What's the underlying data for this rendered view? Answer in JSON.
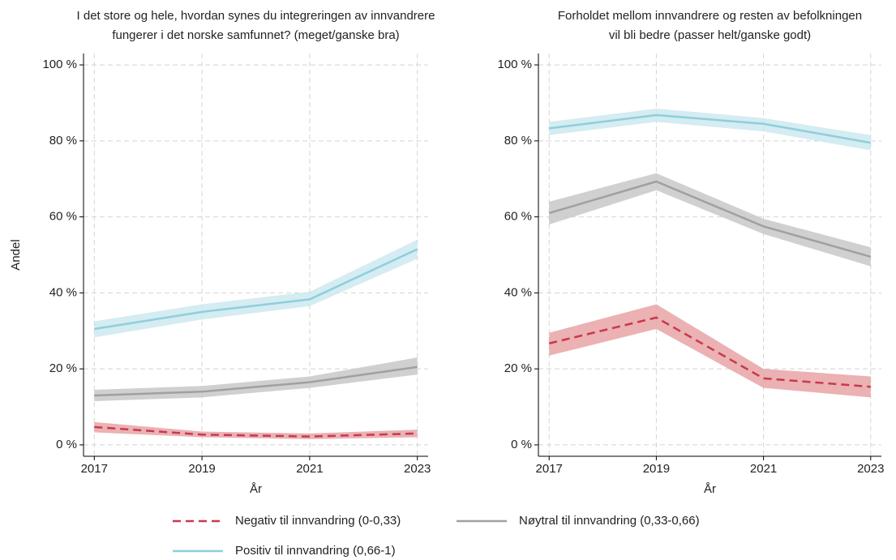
{
  "chart_data": [
    {
      "type": "line",
      "title": [
        "I det store og hele, hvordan synes du integreringen av innvandrere",
        "fungerer i det norske samfunnet? (meget/ganske bra)"
      ],
      "xlabel": "År",
      "ylabel": "Andel",
      "x": [
        2017,
        2019,
        2021,
        2023
      ],
      "xlim": [
        2016.8,
        2023.2
      ],
      "xticks": [
        2017,
        2019,
        2021,
        2023
      ],
      "ylim": [
        -3,
        103
      ],
      "yticks": [
        {
          "value": 0,
          "label": "0 %"
        },
        {
          "value": 20,
          "label": "20 %"
        },
        {
          "value": 40,
          "label": "40 %"
        },
        {
          "value": 60,
          "label": "60 %"
        },
        {
          "value": 80,
          "label": "80 %"
        },
        {
          "value": 100,
          "label": "100 %"
        }
      ],
      "grid": true,
      "series": [
        {
          "name": "Negativ til innvandring (0-0,33)",
          "color": "#c8394f",
          "band_color": "#e8a3a6",
          "dashed": true,
          "values": [
            4.7,
            2.7,
            2.2,
            3
          ],
          "lower": [
            3.3,
            2,
            1.5,
            2
          ],
          "upper": [
            6,
            3.5,
            3,
            4
          ]
        },
        {
          "name": "Nøytral til innvandring (0,33-0,66)",
          "color": "#a0a0a0",
          "band_color": "#c8c8c8",
          "dashed": false,
          "values": [
            13,
            14,
            16.5,
            20.5
          ],
          "lower": [
            11.5,
            12.5,
            15,
            18.5
          ],
          "upper": [
            14.5,
            15.5,
            18,
            23
          ]
        },
        {
          "name": "Positiv til innvandring (0,66-1)",
          "color": "#8ecfdb",
          "band_color": "#cde9f0",
          "dashed": false,
          "values": [
            30.5,
            35,
            38.3,
            51.5
          ],
          "lower": [
            28.3,
            33,
            36.5,
            49
          ],
          "upper": [
            32.5,
            37,
            40.3,
            54
          ]
        }
      ]
    },
    {
      "type": "line",
      "title": [
        "Forholdet mellom innvandrere og resten av befolkningen",
        "vil bli bedre (passer helt/ganske godt)"
      ],
      "xlabel": "År",
      "x": [
        2017,
        2019,
        2021,
        2023
      ],
      "xlim": [
        2016.8,
        2023.2
      ],
      "xticks": [
        2017,
        2019,
        2021,
        2023
      ],
      "ylim": [
        -3,
        103
      ],
      "yticks": [
        {
          "value": 0,
          "label": "0 %"
        },
        {
          "value": 20,
          "label": "20 %"
        },
        {
          "value": 40,
          "label": "40 %"
        },
        {
          "value": 60,
          "label": "60 %"
        },
        {
          "value": 80,
          "label": "80 %"
        },
        {
          "value": 100,
          "label": "100 %"
        }
      ],
      "grid": true,
      "series": [
        {
          "color": "#c8394f",
          "band_color": "#e8a3a6",
          "dashed": true,
          "values": [
            26.7,
            33.5,
            17.5,
            15.3
          ],
          "lower": [
            23.5,
            30.5,
            15,
            12.5
          ],
          "upper": [
            29.5,
            37,
            20,
            18
          ]
        },
        {
          "color": "#a0a0a0",
          "band_color": "#c8c8c8",
          "dashed": false,
          "values": [
            61,
            69.3,
            57.5,
            49.5
          ],
          "lower": [
            58,
            67,
            55.5,
            47
          ],
          "upper": [
            64,
            71.5,
            59.5,
            52
          ]
        },
        {
          "color": "#8ecfdb",
          "band_color": "#cde9f0",
          "dashed": false,
          "values": [
            83.3,
            86.8,
            84.5,
            79.5
          ],
          "lower": [
            81.5,
            85,
            82.5,
            77.5
          ],
          "upper": [
            85,
            88.5,
            86,
            81.5
          ]
        }
      ]
    }
  ]
}
